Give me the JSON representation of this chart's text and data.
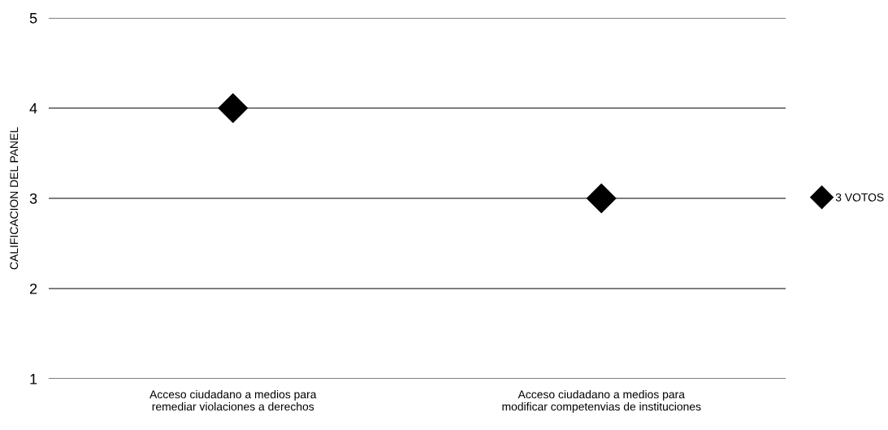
{
  "chart_data": {
    "type": "scatter",
    "ylabel": "CALIFICACION DEL PANEL",
    "categories": [
      "Acceso ciudadano a medios para\nremediar violaciones a derechos",
      "Acceso ciudadano a medios para\nmodificar competenvias de instituciones"
    ],
    "series": [
      {
        "name": "3 VOTOS",
        "color": "#000000",
        "values": [
          4,
          3
        ]
      }
    ],
    "ylim": [
      1,
      5
    ],
    "yticks": [
      1,
      2,
      3,
      4,
      5
    ],
    "grid": "y",
    "legend": "right",
    "marker": "diamond"
  }
}
